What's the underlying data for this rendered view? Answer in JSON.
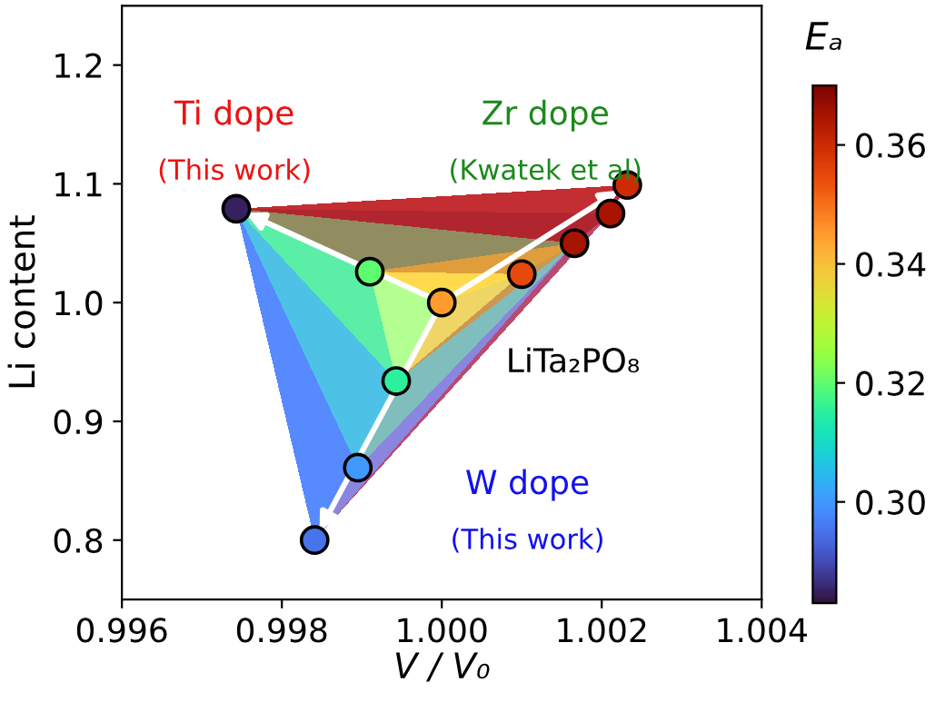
{
  "chart_data": {
    "type": "scatter",
    "xlabel": "V / V₀",
    "ylabel": "Li content",
    "clabel": "Eₐ",
    "xlim": [
      0.996,
      1.004
    ],
    "ylim": [
      0.75,
      1.25
    ],
    "xticks": [
      {
        "value": 0.996,
        "label": "0.996"
      },
      {
        "value": 0.998,
        "label": "0.998"
      },
      {
        "value": 1.0,
        "label": "1.000"
      },
      {
        "value": 1.002,
        "label": "1.002"
      },
      {
        "value": 1.004,
        "label": "1.004"
      }
    ],
    "yticks": [
      0.8,
      0.9,
      {
        "value": 1.0,
        "label": "1.0"
      },
      1.1,
      1.2
    ],
    "clim": [
      0.283,
      0.37
    ],
    "cticks": [
      {
        "value": 0.3,
        "label": "0.30"
      },
      0.32,
      0.34,
      0.36
    ],
    "marker": "circle",
    "grid": false,
    "legend": false,
    "series": [
      {
        "color": "#000000",
        "x": [
          1.0
        ],
        "values": [
          1.0
        ],
        "cvalues": [
          0.345
        ]
      },
      {
        "color": "#000000",
        "x": [
          0.9991,
          0.99743
        ],
        "values": [
          1.026,
          1.079
        ],
        "cvalues": [
          0.32,
          0.285
        ]
      },
      {
        "color": "#000000",
        "x": [
          1.001,
          1.00166,
          1.00211,
          1.00232
        ],
        "values": [
          1.024,
          1.05,
          1.075,
          1.099
        ],
        "cvalues": [
          0.355,
          0.365,
          0.365,
          0.36
        ]
      },
      {
        "color": "#000000",
        "x": [
          0.99943,
          0.99895,
          0.99841
        ],
        "values": [
          0.934,
          0.861,
          0.8
        ],
        "cvalues": [
          0.315,
          0.3,
          0.295
        ]
      }
    ],
    "annotations": [
      "Ti dope",
      "(This work)",
      "Zr dope",
      "(Kwatek et al)",
      "LiTa₂PO₈",
      "W dope",
      "(This work)"
    ]
  }
}
